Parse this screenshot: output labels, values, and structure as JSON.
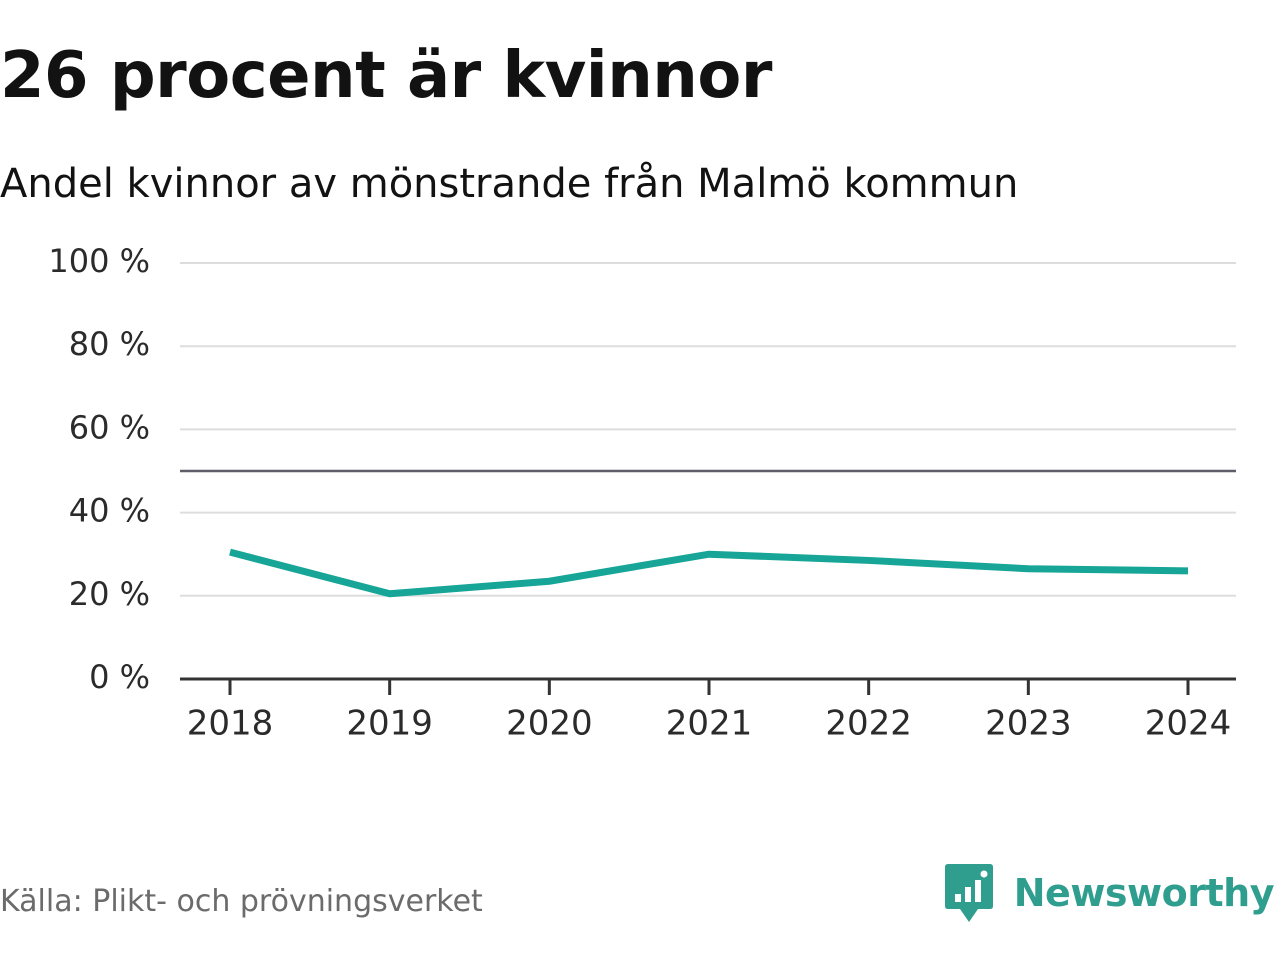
{
  "title": "26 procent är kvinnor",
  "subtitle": "Andel kvinnor av mönstrande från Malmö kommun",
  "source": "Källa: Plikt- och prövningsverket",
  "brand": {
    "name": "Newsworthy",
    "icon": "newsworthy-logo-icon",
    "color": "#2f9e8f"
  },
  "colors": {
    "series": "#16a597",
    "reference_line": "#5e5e6a",
    "grid": "#dddddd",
    "axis": "#333333"
  },
  "chart_data": {
    "type": "line",
    "x": [
      "2018",
      "2019",
      "2020",
      "2021",
      "2022",
      "2023",
      "2024"
    ],
    "series": [
      {
        "values": [
          30.5,
          20.5,
          23.5,
          30.0,
          28.5,
          26.5,
          26.0
        ]
      }
    ],
    "reference_line": 50,
    "ylim": [
      0,
      100
    ],
    "yticks": [
      0,
      20,
      40,
      60,
      80,
      100
    ],
    "ytick_labels": [
      "0 %",
      "20 %",
      "40 %",
      "60 %",
      "80 %",
      "100 %"
    ],
    "xlabel": "",
    "ylabel": "",
    "grid": true,
    "legend": "none"
  }
}
